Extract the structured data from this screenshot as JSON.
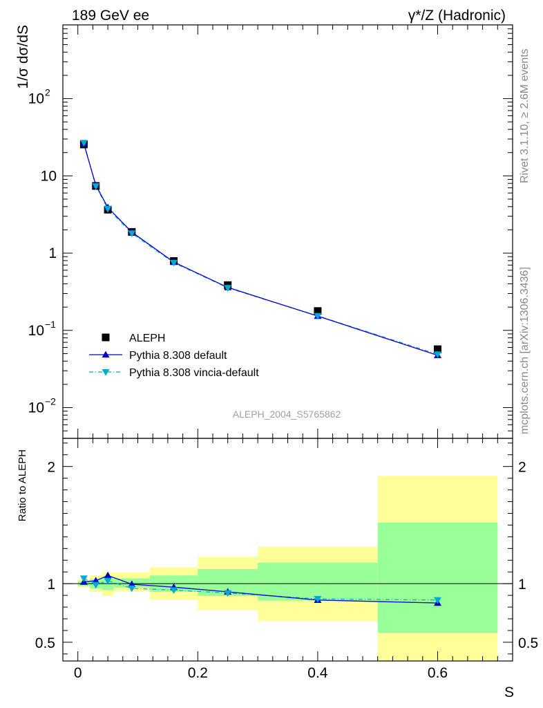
{
  "header": {
    "left": "189 GeV ee",
    "right": "γ*/Z (Hadronic)"
  },
  "side_text": {
    "rivet": "Rivet 3.1.10, ≥ 2.6M events",
    "mcplots": "mcplots.cern.ch [arXiv:1306.3436]"
  },
  "watermark": "ALEPH_2004_S5765862",
  "colors": {
    "data": "#000000",
    "default": "#0000cc",
    "vincia": "#00aacc",
    "band_outer": "#ffff99",
    "band_inner": "#99ff99"
  },
  "chart_data": [
    {
      "type": "scatter",
      "panel": "main",
      "ylabel": "1/σ  dσ/dS",
      "yscale": "log",
      "xlim": [
        -0.025,
        0.725
      ],
      "ylim": [
        0.004,
        900
      ],
      "yticks": [
        {
          "value": 0.01,
          "label": "10",
          "exp": "−2"
        },
        {
          "value": 0.1,
          "label": "10",
          "exp": "−1"
        },
        {
          "value": 1,
          "label": "1",
          "exp": ""
        },
        {
          "value": 10,
          "label": "10",
          "exp": ""
        },
        {
          "value": 100,
          "label": "10",
          "exp": "2"
        }
      ],
      "legend_position": "bottom-left",
      "series": [
        {
          "name": "ALEPH",
          "style": "square",
          "x": [
            0.01,
            0.03,
            0.05,
            0.09,
            0.16,
            0.25,
            0.4,
            0.6
          ],
          "y": [
            25.5,
            7.4,
            3.65,
            1.88,
            0.79,
            0.385,
            0.178,
            0.057
          ]
        },
        {
          "name": "Pythia 8.308 default",
          "style": "line-triangle-up",
          "x": [
            0.01,
            0.03,
            0.05,
            0.09,
            0.16,
            0.25,
            0.4,
            0.6
          ],
          "y": [
            26.0,
            7.55,
            3.9,
            1.87,
            0.765,
            0.36,
            0.153,
            0.0475
          ]
        },
        {
          "name": "Pythia 8.308 vincia-default",
          "style": "dashdot-triangle-down",
          "x": [
            0.01,
            0.03,
            0.05,
            0.09,
            0.16,
            0.25,
            0.4,
            0.6
          ],
          "y": [
            26.8,
            7.35,
            3.75,
            1.8,
            0.75,
            0.355,
            0.154,
            0.049
          ]
        }
      ]
    },
    {
      "type": "line",
      "panel": "ratio",
      "xlabel": "S",
      "ylabel": "Ratio to ALEPH",
      "xlim": [
        -0.025,
        0.725
      ],
      "ylim": [
        0.34,
        2.24
      ],
      "xticks": [
        0,
        0.2,
        0.4,
        0.6
      ],
      "xtick_labels": [
        "0",
        "0.2",
        "0.4",
        "0.6"
      ],
      "yticks": [
        0.5,
        1,
        2
      ],
      "ytick_labels": [
        "0.5",
        "1",
        "2"
      ],
      "bands": [
        {
          "x0": 0.0,
          "x1": 0.02,
          "outer": [
            0.965,
            1.035
          ],
          "inner": [
            0.98,
            1.02
          ]
        },
        {
          "x0": 0.02,
          "x1": 0.04,
          "outer": [
            0.93,
            1.07
          ],
          "inner": [
            0.96,
            1.04
          ]
        },
        {
          "x0": 0.04,
          "x1": 0.06,
          "outer": [
            0.895,
            1.095
          ],
          "inner": [
            0.945,
            1.055
          ]
        },
        {
          "x0": 0.06,
          "x1": 0.12,
          "outer": [
            0.935,
            1.095
          ],
          "inner": [
            0.965,
            1.045
          ]
        },
        {
          "x0": 0.12,
          "x1": 0.2,
          "outer": [
            0.865,
            1.14
          ],
          "inner": [
            0.93,
            1.07
          ]
        },
        {
          "x0": 0.2,
          "x1": 0.3,
          "outer": [
            0.775,
            1.225
          ],
          "inner": [
            0.895,
            1.125
          ]
        },
        {
          "x0": 0.3,
          "x1": 0.5,
          "outer": [
            0.68,
            1.315
          ],
          "inner": [
            0.855,
            1.18
          ]
        },
        {
          "x0": 0.5,
          "x1": 0.7,
          "outer": [
            0.34,
            1.92
          ],
          "inner": [
            0.58,
            1.52
          ]
        }
      ],
      "series": [
        {
          "name": "Pythia 8.308 default",
          "x": [
            0.01,
            0.03,
            0.05,
            0.09,
            0.16,
            0.25,
            0.4,
            0.6
          ],
          "y": [
            1.015,
            1.025,
            1.07,
            0.995,
            0.97,
            0.93,
            0.86,
            0.835
          ]
        },
        {
          "name": "Pythia 8.308 vincia-default",
          "x": [
            0.01,
            0.03,
            0.05,
            0.09,
            0.16,
            0.25,
            0.4,
            0.6
          ],
          "y": [
            1.045,
            0.99,
            1.025,
            0.96,
            0.945,
            0.92,
            0.87,
            0.86
          ]
        }
      ]
    }
  ]
}
